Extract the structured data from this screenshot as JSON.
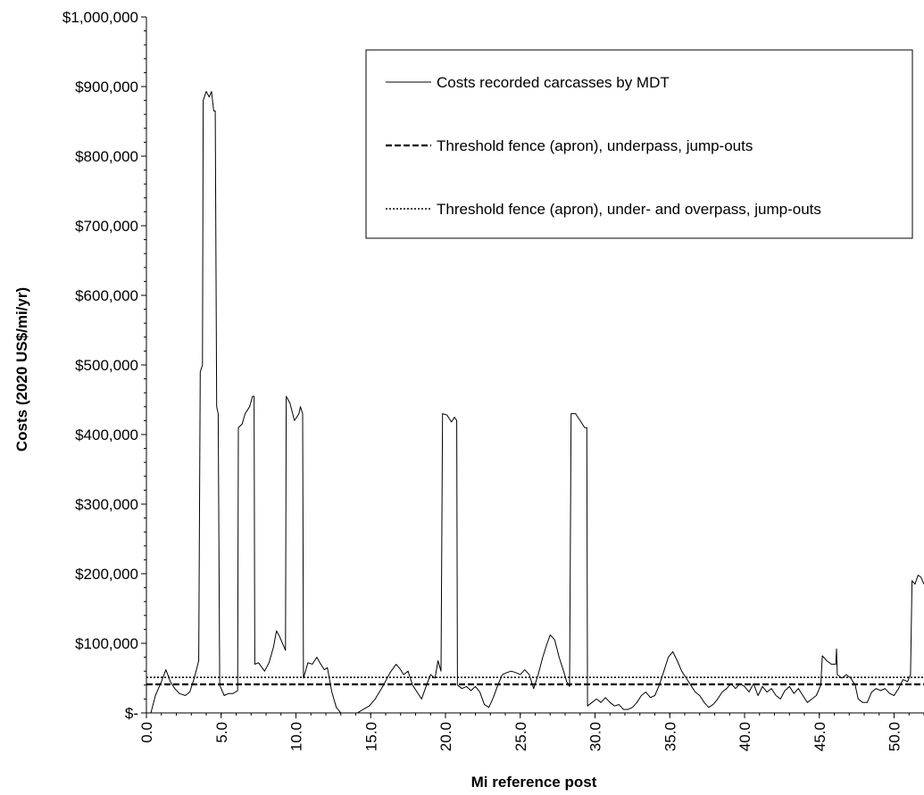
{
  "chart_data": {
    "type": "line",
    "xlabel": "Mi reference post",
    "ylabel": "Costs (2020 US$/mi/yr)",
    "xlim": [
      0,
      52
    ],
    "ylim": [
      0,
      1000000
    ],
    "x_ticks": [
      0,
      5,
      10,
      15,
      20,
      25,
      30,
      35,
      40,
      45,
      50
    ],
    "x_tick_labels": [
      "0.0",
      "5.0",
      "10.0",
      "15.0",
      "20.0",
      "25.0",
      "30.0",
      "35.0",
      "40.0",
      "45.0",
      "50.0"
    ],
    "y_ticks": [
      0,
      100000,
      200000,
      300000,
      400000,
      500000,
      600000,
      700000,
      800000,
      900000,
      1000000
    ],
    "y_tick_labels": [
      "$-",
      "$100,000",
      "$200,000",
      "$300,000",
      "$400,000",
      "$500,000",
      "$600,000",
      "$700,000",
      "$800,000",
      "$900,000",
      "$1,000,000"
    ],
    "legend_position": "top-right",
    "grid": false,
    "series": [
      {
        "name": "Costs recorded carcasses by MDT",
        "style": "solid",
        "color": "#000000",
        "points": [
          [
            0.0,
            0
          ],
          [
            0.3,
            0
          ],
          [
            0.6,
            25000
          ],
          [
            1.0,
            45000
          ],
          [
            1.3,
            62000
          ],
          [
            1.6,
            45000
          ],
          [
            1.9,
            35000
          ],
          [
            2.2,
            28000
          ],
          [
            2.6,
            25000
          ],
          [
            2.9,
            30000
          ],
          [
            3.2,
            50000
          ],
          [
            3.5,
            75000
          ],
          [
            3.6,
            490000
          ],
          [
            3.75,
            500000
          ],
          [
            3.8,
            880000
          ],
          [
            4.0,
            893000
          ],
          [
            4.2,
            885000
          ],
          [
            4.35,
            893000
          ],
          [
            4.5,
            865000
          ],
          [
            4.6,
            865000
          ],
          [
            4.7,
            440000
          ],
          [
            4.8,
            430000
          ],
          [
            4.9,
            40000
          ],
          [
            5.2,
            25000
          ],
          [
            5.5,
            28000
          ],
          [
            5.8,
            28000
          ],
          [
            6.1,
            32000
          ],
          [
            6.15,
            410000
          ],
          [
            6.4,
            415000
          ],
          [
            6.6,
            430000
          ],
          [
            6.9,
            440000
          ],
          [
            7.1,
            455000
          ],
          [
            7.2,
            455000
          ],
          [
            7.25,
            70000
          ],
          [
            7.5,
            72000
          ],
          [
            7.9,
            60000
          ],
          [
            8.2,
            72000
          ],
          [
            8.5,
            95000
          ],
          [
            8.7,
            118000
          ],
          [
            8.9,
            110000
          ],
          [
            9.1,
            100000
          ],
          [
            9.3,
            90000
          ],
          [
            9.35,
            455000
          ],
          [
            9.6,
            445000
          ],
          [
            9.9,
            420000
          ],
          [
            10.2,
            430000
          ],
          [
            10.3,
            440000
          ],
          [
            10.45,
            430000
          ],
          [
            10.5,
            50000
          ],
          [
            10.8,
            72000
          ],
          [
            11.1,
            70000
          ],
          [
            11.4,
            80000
          ],
          [
            11.6,
            72000
          ],
          [
            11.9,
            62000
          ],
          [
            12.1,
            65000
          ],
          [
            12.4,
            30000
          ],
          [
            12.7,
            8000
          ],
          [
            13.0,
            0
          ],
          [
            13.4,
            0
          ],
          [
            13.8,
            0
          ],
          [
            14.1,
            0
          ],
          [
            14.5,
            5000
          ],
          [
            14.9,
            10000
          ],
          [
            15.3,
            20000
          ],
          [
            15.8,
            38000
          ],
          [
            16.3,
            58000
          ],
          [
            16.7,
            70000
          ],
          [
            17.0,
            62000
          ],
          [
            17.2,
            55000
          ],
          [
            17.5,
            60000
          ],
          [
            17.8,
            40000
          ],
          [
            18.1,
            30000
          ],
          [
            18.4,
            20000
          ],
          [
            18.7,
            38000
          ],
          [
            19.0,
            55000
          ],
          [
            19.3,
            50000
          ],
          [
            19.5,
            75000
          ],
          [
            19.7,
            60000
          ],
          [
            19.8,
            430000
          ],
          [
            20.1,
            428000
          ],
          [
            20.4,
            418000
          ],
          [
            20.6,
            425000
          ],
          [
            20.75,
            420000
          ],
          [
            20.8,
            40000
          ],
          [
            21.1,
            35000
          ],
          [
            21.4,
            38000
          ],
          [
            21.7,
            32000
          ],
          [
            22.0,
            38000
          ],
          [
            22.3,
            30000
          ],
          [
            22.6,
            12000
          ],
          [
            22.9,
            8000
          ],
          [
            23.2,
            22000
          ],
          [
            23.5,
            40000
          ],
          [
            23.8,
            55000
          ],
          [
            24.1,
            58000
          ],
          [
            24.4,
            60000
          ],
          [
            24.7,
            58000
          ],
          [
            25.0,
            55000
          ],
          [
            25.3,
            62000
          ],
          [
            25.6,
            55000
          ],
          [
            25.9,
            35000
          ],
          [
            26.2,
            55000
          ],
          [
            26.5,
            80000
          ],
          [
            26.8,
            100000
          ],
          [
            27.0,
            112000
          ],
          [
            27.3,
            105000
          ],
          [
            27.6,
            80000
          ],
          [
            27.9,
            60000
          ],
          [
            28.1,
            45000
          ],
          [
            28.3,
            38000
          ],
          [
            28.4,
            430000
          ],
          [
            28.7,
            430000
          ],
          [
            29.0,
            420000
          ],
          [
            29.3,
            410000
          ],
          [
            29.45,
            410000
          ],
          [
            29.5,
            10000
          ],
          [
            29.8,
            15000
          ],
          [
            30.1,
            20000
          ],
          [
            30.4,
            15000
          ],
          [
            30.7,
            22000
          ],
          [
            31.0,
            15000
          ],
          [
            31.3,
            10000
          ],
          [
            31.6,
            12000
          ],
          [
            31.9,
            5000
          ],
          [
            32.2,
            5000
          ],
          [
            32.5,
            8000
          ],
          [
            32.8,
            15000
          ],
          [
            33.1,
            25000
          ],
          [
            33.4,
            30000
          ],
          [
            33.7,
            22000
          ],
          [
            34.0,
            25000
          ],
          [
            34.3,
            40000
          ],
          [
            34.6,
            60000
          ],
          [
            34.9,
            80000
          ],
          [
            35.2,
            88000
          ],
          [
            35.5,
            75000
          ],
          [
            35.8,
            60000
          ],
          [
            36.1,
            50000
          ],
          [
            36.4,
            40000
          ],
          [
            36.7,
            30000
          ],
          [
            37.0,
            25000
          ],
          [
            37.3,
            15000
          ],
          [
            37.6,
            8000
          ],
          [
            37.9,
            12000
          ],
          [
            38.2,
            20000
          ],
          [
            38.5,
            30000
          ],
          [
            38.8,
            35000
          ],
          [
            39.1,
            42000
          ],
          [
            39.4,
            35000
          ],
          [
            39.7,
            42000
          ],
          [
            40.0,
            38000
          ],
          [
            40.3,
            30000
          ],
          [
            40.6,
            42000
          ],
          [
            40.9,
            25000
          ],
          [
            41.2,
            38000
          ],
          [
            41.5,
            30000
          ],
          [
            41.8,
            35000
          ],
          [
            42.1,
            25000
          ],
          [
            42.4,
            20000
          ],
          [
            42.7,
            32000
          ],
          [
            43.0,
            38000
          ],
          [
            43.3,
            28000
          ],
          [
            43.6,
            35000
          ],
          [
            43.9,
            25000
          ],
          [
            44.2,
            15000
          ],
          [
            44.5,
            20000
          ],
          [
            44.8,
            25000
          ],
          [
            45.1,
            40000
          ],
          [
            45.2,
            82000
          ],
          [
            45.5,
            75000
          ],
          [
            45.8,
            70000
          ],
          [
            46.1,
            70000
          ],
          [
            46.15,
            92000
          ],
          [
            46.2,
            55000
          ],
          [
            46.5,
            50000
          ],
          [
            46.8,
            55000
          ],
          [
            47.1,
            50000
          ],
          [
            47.4,
            40000
          ],
          [
            47.6,
            20000
          ],
          [
            47.9,
            15000
          ],
          [
            48.2,
            15000
          ],
          [
            48.5,
            30000
          ],
          [
            48.8,
            35000
          ],
          [
            49.1,
            32000
          ],
          [
            49.4,
            35000
          ],
          [
            49.7,
            28000
          ],
          [
            50.0,
            25000
          ],
          [
            50.3,
            35000
          ],
          [
            50.6,
            48000
          ],
          [
            50.9,
            45000
          ],
          [
            51.1,
            55000
          ],
          [
            51.2,
            190000
          ],
          [
            51.4,
            185000
          ],
          [
            51.6,
            198000
          ],
          [
            51.8,
            195000
          ],
          [
            52.0,
            185000
          ]
        ]
      },
      {
        "name": "Threshold fence (apron), underpass, jump-outs",
        "style": "dashed",
        "color": "#000000",
        "points": [
          [
            0,
            41000
          ],
          [
            52,
            41000
          ]
        ]
      },
      {
        "name": "Threshold fence (apron), under- and overpass, jump-outs",
        "style": "dotted",
        "color": "#000000",
        "points": [
          [
            0,
            51000
          ],
          [
            52,
            51000
          ]
        ]
      }
    ]
  }
}
